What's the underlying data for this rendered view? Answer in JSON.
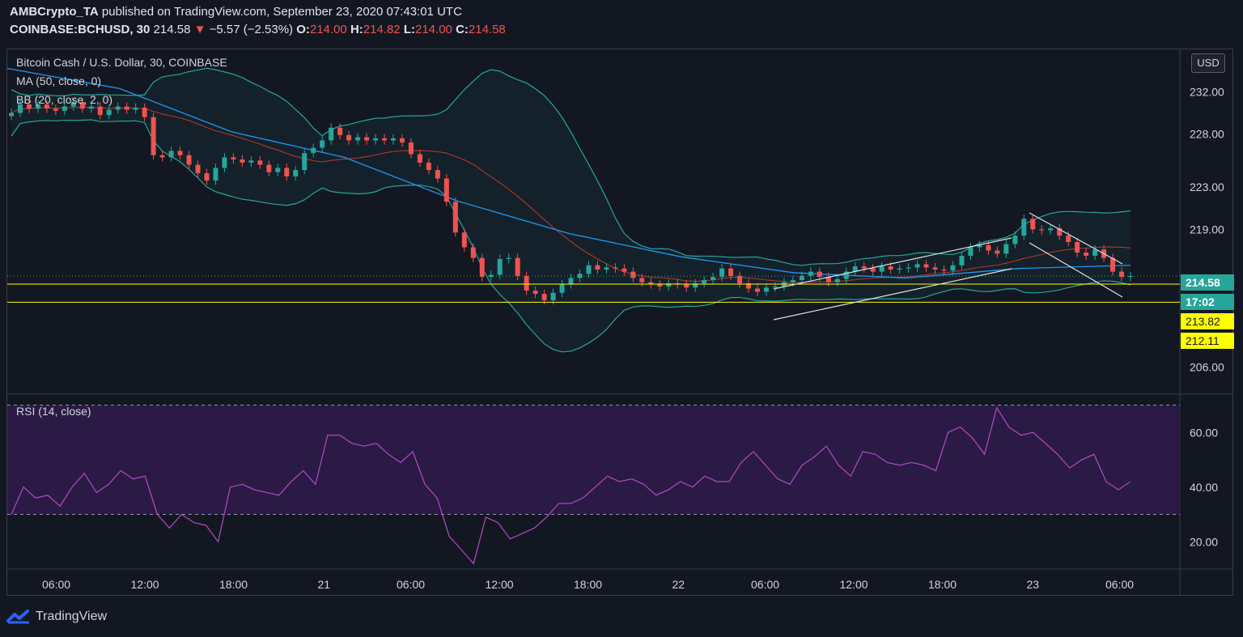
{
  "header": {
    "publisher": "AMBCrypto_TA",
    "published_text": "published on TradingView.com, September 23, 2020 07:43:01 UTC",
    "symbol": "COINBASE:BCHUSD, 30",
    "last": "214.58",
    "change": "−5.57 (−2.53%)",
    "o_label": "O:",
    "o": "214.00",
    "h_label": "H:",
    "h": "214.82",
    "l_label": "L:",
    "l": "214.00",
    "c_label": "C:",
    "c": "214.58"
  },
  "legend": {
    "title": "Bitcoin Cash / U.S. Dollar, 30, COINBASE",
    "ma": "MA (50, close, 0)",
    "bb": "BB (20, close, 2, 0)",
    "rsi": "RSI (14, close)"
  },
  "currency_button": "USD",
  "price_tags": {
    "price": "214.58",
    "timer": "17:02",
    "hline1": "213.82",
    "hline2": "212.11"
  },
  "footer": {
    "brand": "TradingView",
    "icon": "tradingview-logo-icon"
  },
  "colors": {
    "up": "#26a69a",
    "down": "#ef5350",
    "ma": "#2196f3",
    "bb_band": "#26a69a",
    "bb_basis": "#c0392b",
    "hline": "#ffff00",
    "rsi": "#ab47bc",
    "rsi_bg": "#2a1a45"
  },
  "chart_data": [
    {
      "type": "candlestick",
      "title": "Bitcoin Cash / U.S. Dollar, 30, COINBASE",
      "ylim": [
        203.5,
        236
      ],
      "ticks_y": [
        206.0,
        219.0,
        223.0,
        228.0,
        232.0
      ],
      "ticks_x": [
        "06:00",
        "12:00",
        "18:00",
        "21",
        "06:00",
        "12:00",
        "18:00",
        "22",
        "06:00",
        "12:00",
        "18:00",
        "23",
        "06:00"
      ],
      "hlines": [
        213.82,
        212.11
      ],
      "close_series": [
        230.0,
        230.8,
        230.4,
        230.8,
        230.4,
        230.2,
        230.6,
        231.0,
        230.4,
        230.6,
        229.8,
        230.3,
        230.6,
        230.3,
        230.5,
        229.6,
        226.0,
        225.8,
        226.4,
        226.0,
        225.1,
        224.3,
        223.6,
        224.8,
        225.8,
        225.6,
        225.3,
        225.5,
        225.1,
        224.4,
        224.8,
        224.0,
        224.6,
        226.2,
        226.7,
        227.4,
        228.6,
        227.9,
        227.4,
        227.7,
        227.4,
        227.6,
        227.4,
        227.6,
        227.2,
        226.1,
        225.3,
        224.6,
        223.8,
        221.6,
        218.7,
        217.3,
        216.3,
        214.5,
        214.7,
        216.2,
        216.3,
        214.6,
        213.2,
        212.9,
        212.3,
        213.0,
        213.8,
        214.4,
        214.8,
        215.6,
        215.2,
        215.4,
        215.3,
        215.0,
        214.4,
        214.0,
        213.8,
        213.6,
        213.9,
        213.8,
        213.5,
        213.9,
        214.2,
        214.5,
        215.3,
        214.6,
        213.9,
        213.4,
        213.1,
        213.5,
        213.6,
        214.0,
        214.2,
        214.6,
        215.0,
        214.5,
        214.0,
        214.3,
        215.0,
        215.5,
        215.3,
        215.0,
        215.5,
        215.2,
        215.3,
        215.4,
        215.7,
        215.4,
        215.2,
        215.1,
        215.6,
        216.5,
        217.3,
        217.5,
        217.0,
        216.7,
        217.6,
        218.4,
        220.0,
        219.0,
        218.9,
        219.1,
        218.4,
        217.8,
        216.8,
        216.5,
        217.1,
        216.3,
        215.0,
        214.5,
        214.58
      ],
      "ma50": [
        234.2,
        232.3,
        228.2,
        225.8,
        221.7,
        218.6,
        216.4,
        214.9,
        214.4,
        215.3,
        215.6
      ],
      "bb_upper_peak": 232.5,
      "bb_lower_trough": 206.8
    },
    {
      "type": "line",
      "title": "RSI (14, close)",
      "ylim": [
        10,
        74
      ],
      "ticks_y": [
        20.0,
        40.0,
        60.0
      ],
      "band": [
        30,
        70
      ],
      "values": [
        30,
        40,
        36,
        37,
        33,
        40,
        45,
        38,
        41,
        46,
        43,
        44,
        30,
        25,
        30,
        27,
        26,
        20,
        40,
        41,
        39,
        38,
        37,
        42,
        46,
        41,
        59,
        59,
        56,
        55,
        56,
        52,
        49,
        53,
        41,
        36,
        22,
        17,
        12,
        29,
        27,
        21,
        23,
        25,
        29,
        34,
        34,
        36,
        40,
        44,
        42,
        43,
        41,
        37,
        39,
        42,
        40,
        44,
        42,
        42,
        49,
        53,
        48,
        43,
        41,
        48,
        51,
        55,
        48,
        44,
        53,
        52,
        49,
        48,
        49,
        48,
        46,
        60,
        62,
        58,
        52,
        69,
        62,
        59,
        60,
        56,
        52,
        47,
        50,
        52,
        42,
        39,
        42
      ]
    }
  ]
}
